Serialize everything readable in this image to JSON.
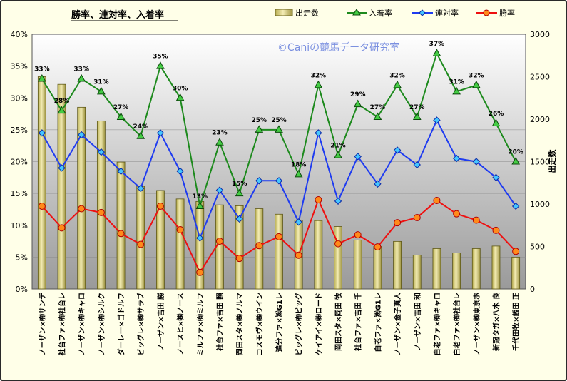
{
  "chart_data": {
    "type": "bar",
    "title": "勝率、連対率、入着率",
    "copyright": "©Caniの競馬データ研究室",
    "y2label": "出走数",
    "ylim": [
      0,
      40
    ],
    "y2lim": [
      0,
      3000
    ],
    "yticks": [
      "0%",
      "5%",
      "10%",
      "15%",
      "20%",
      "25%",
      "30%",
      "35%",
      "40%"
    ],
    "y2ticks": [
      "0",
      "500",
      "1000",
      "1500",
      "2000",
      "2500",
      "3000"
    ],
    "grid": true,
    "legend_position": "top",
    "categories": [
      "ノーザン×㈲サンデ",
      "社台ファ×㈲社台レ",
      "ノーザン×㈲キャロ",
      "ノーザン×㈲シルク",
      "ダーレー×ゴドルフ",
      "ビッグレ×㈱サラブ",
      "ノーザン×吉田 勝",
      "ノースヒ×㈱ノース",
      "ミルファ×㈲ミルフ",
      "社台ファ×吉田 照",
      "岡田スタ×㈱ノルマ",
      "コスモヴ×㈱ウイン",
      "追分ファ×㈱G1レ",
      "ビッグレ×㈲ビッグ",
      "ケイアイ×㈱ロード",
      "岡田スタ×岡田 牧",
      "社台ファ×吉田 千",
      "白老ファ×㈱G1レ",
      "ノーザン×金子真人",
      "ノーザン×吉田 和",
      "白老ファ×㈲キャロ",
      "白老ファ×㈲社台レ",
      "ノーザン×㈱東京ホ",
      "新冠タガ×八木 良",
      "千代田牧×飯田 正"
    ],
    "bar_series": {
      "name": "出走数",
      "axis": "right",
      "color": "#dcd48c",
      "values": [
        2500,
        2410,
        2140,
        1980,
        1495,
        1210,
        1160,
        1060,
        1030,
        990,
        980,
        945,
        880,
        810,
        805,
        735,
        575,
        500,
        560,
        400,
        475,
        425,
        475,
        505,
        375
      ]
    },
    "series": [
      {
        "name": "入着率",
        "axis": "left",
        "color": "#1d8a1d",
        "marker": "triangle",
        "values": [
          33,
          28,
          33,
          31,
          27,
          24,
          35,
          30,
          13,
          23,
          15,
          25,
          25,
          18,
          32,
          21,
          29,
          27,
          32,
          27,
          37,
          31,
          32,
          26,
          20
        ],
        "labels": [
          "33%",
          "28%",
          "33%",
          "31%",
          "27%",
          "24%",
          "35%",
          "30%",
          "13%",
          "23%",
          "15%",
          "25%",
          "25%",
          "18%",
          "32%",
          "21%",
          "29%",
          "27%",
          "32%",
          "27%",
          "37%",
          "31%",
          "32%",
          "26%",
          "20%"
        ]
      },
      {
        "name": "連対率",
        "axis": "left",
        "color": "#1f3cf0",
        "marker": "diamond",
        "values": [
          24.5,
          19,
          24.2,
          21.5,
          18.5,
          15.8,
          24.5,
          18.5,
          8,
          15.5,
          11,
          17,
          17,
          10.5,
          24.5,
          13.8,
          20.8,
          16.5,
          21.8,
          19.5,
          26.5,
          20.5,
          20,
          17.5,
          13
        ]
      },
      {
        "name": "勝率",
        "axis": "left",
        "color": "#ee1010",
        "marker": "circle",
        "values": [
          13,
          9.6,
          12.6,
          12,
          8.7,
          7,
          13,
          9.3,
          2.6,
          7.5,
          4.8,
          6.8,
          8.2,
          5.3,
          14,
          7.1,
          8.5,
          6.6,
          10.4,
          11.2,
          13.9,
          11.8,
          10.8,
          9.2,
          5.9
        ]
      }
    ]
  }
}
